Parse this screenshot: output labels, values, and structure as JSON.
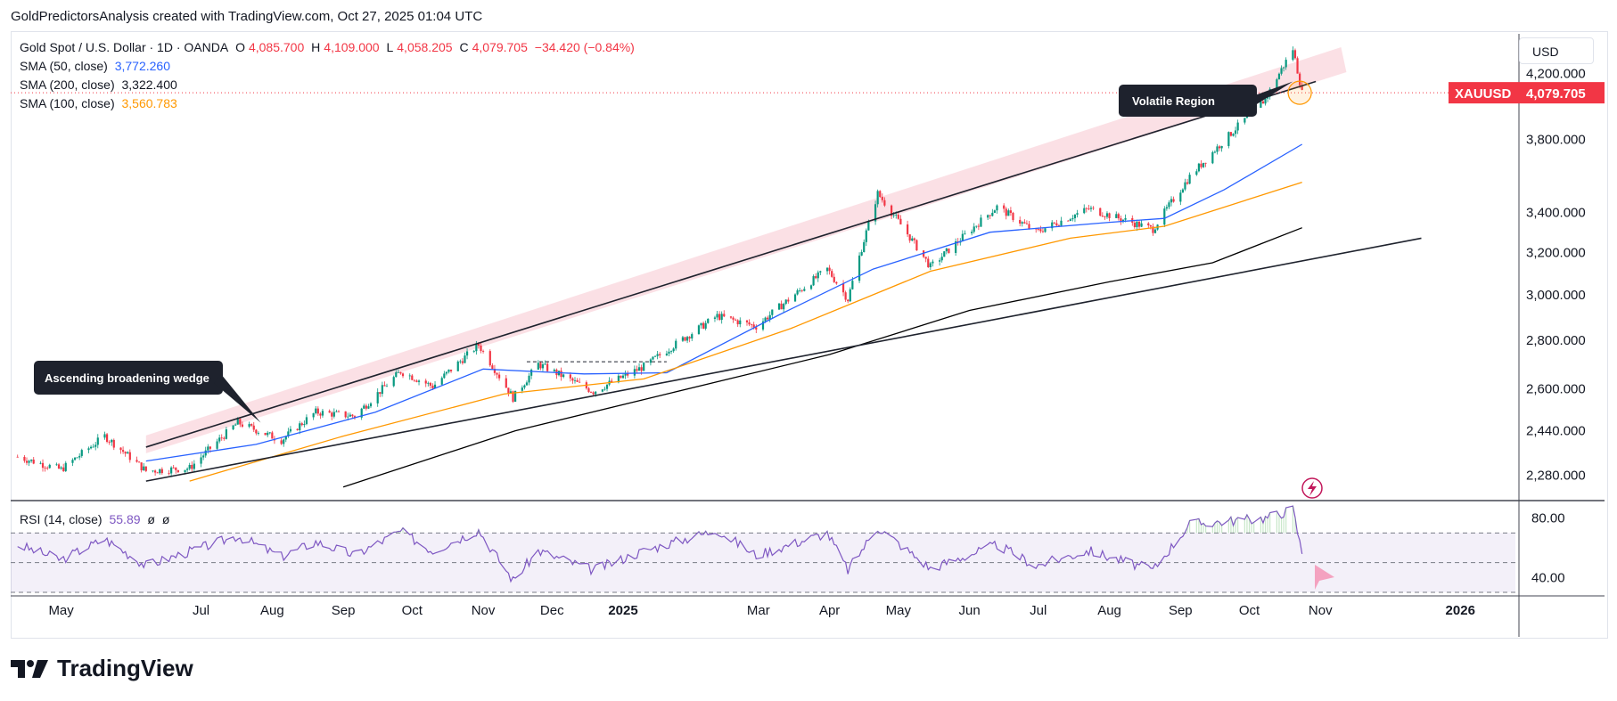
{
  "header": {
    "credit": "GoldPredictorsAnalysis created with TradingView.com, Oct 27, 2025 01:04 UTC"
  },
  "legend": {
    "symbol": "Gold Spot / U.S. Dollar · 1D · OANDA",
    "open_label": "O",
    "open": "4,085.700",
    "high_label": "H",
    "high": "4,109.000",
    "low_label": "L",
    "low": "4,058.205",
    "close_label": "C",
    "close": "4,079.705",
    "change": "−34.420 (−0.84%)",
    "sma50_label": "SMA (50, close)",
    "sma50_value": "3,772.260",
    "sma200_label": "SMA (200, close)",
    "sma200_value": "3,322.400",
    "sma100_label": "SMA (100, close)",
    "sma100_value": "3,560.783",
    "rsi_label": "RSI (14, close)",
    "rsi_value": "55.89",
    "rsi_extra1": "ø",
    "rsi_extra2": "ø"
  },
  "currency_button": "USD",
  "price_tag": {
    "symbol": "XAUUSD",
    "value": "4,079.705"
  },
  "annotations": {
    "volatile": "Volatile Region",
    "wedge": "Ascending broadening wedge"
  },
  "logo": {
    "text": "TradingView"
  },
  "colors": {
    "up": "#089981",
    "down": "#f23645",
    "sma50": "#2962ff",
    "sma100": "#ff9800",
    "sma200": "#000000",
    "rsi": "#7e57c2",
    "tag": "#f23645",
    "channel": "#f7c7d0"
  },
  "chart_data": [
    {
      "type": "candlestick",
      "title": "Gold Spot / U.S. Dollar · 1D · OANDA",
      "y_scale": "log",
      "ylim": [
        2200,
        4450
      ],
      "y_ticks": [
        2280,
        2440,
        2600,
        2800,
        3000,
        3200,
        3400,
        3800,
        4200
      ],
      "y_tick_labels": [
        "2,280.000",
        "2,440.000",
        "2,600.000",
        "2,800.000",
        "3,000.000",
        "3,200.000",
        "3,400.000",
        "3,800.000",
        "4,200.000"
      ],
      "x_tick_labels": [
        "May",
        "Jul",
        "Aug",
        "Sep",
        "Oct",
        "Nov",
        "Dec",
        "2025",
        "Mar",
        "Apr",
        "May",
        "Jun",
        "Jul",
        "Aug",
        "Sep",
        "Oct",
        "Nov",
        "2026"
      ],
      "x_tick_dates": [
        "2024-05-01",
        "2024-07-01",
        "2024-08-01",
        "2024-09-01",
        "2024-10-01",
        "2024-11-01",
        "2024-12-01",
        "2025-01-01",
        "2025-03-01",
        "2025-04-01",
        "2025-05-01",
        "2025-06-01",
        "2025-07-01",
        "2025-08-01",
        "2025-09-01",
        "2025-10-01",
        "2025-11-01",
        "2026-01-01"
      ],
      "price_path": [
        [
          "2024-04-12",
          2345
        ],
        [
          "2024-05-01",
          2300
        ],
        [
          "2024-05-20",
          2420
        ],
        [
          "2024-06-07",
          2295
        ],
        [
          "2024-06-26",
          2305
        ],
        [
          "2024-07-17",
          2470
        ],
        [
          "2024-08-05",
          2405
        ],
        [
          "2024-08-20",
          2510
        ],
        [
          "2024-09-06",
          2495
        ],
        [
          "2024-09-26",
          2670
        ],
        [
          "2024-10-10",
          2610
        ],
        [
          "2024-10-30",
          2780
        ],
        [
          "2024-11-14",
          2565
        ],
        [
          "2024-11-25",
          2700
        ],
        [
          "2024-12-19",
          2590
        ],
        [
          "2025-01-10",
          2690
        ],
        [
          "2025-02-11",
          2905
        ],
        [
          "2025-02-28",
          2860
        ],
        [
          "2025-03-31",
          3120
        ],
        [
          "2025-04-09",
          2980
        ],
        [
          "2025-04-22",
          3500
        ],
        [
          "2025-05-15",
          3130
        ],
        [
          "2025-06-13",
          3430
        ],
        [
          "2025-06-30",
          3300
        ],
        [
          "2025-07-23",
          3420
        ],
        [
          "2025-08-20",
          3315
        ],
        [
          "2025-09-05",
          3590
        ],
        [
          "2025-10-08",
          4040
        ],
        [
          "2025-10-20",
          4360
        ],
        [
          "2025-10-24",
          4079.705
        ]
      ],
      "series": [
        {
          "name": "SMA (50, close)",
          "points": [
            [
              "2024-06-07",
              2330
            ],
            [
              "2024-07-25",
              2390
            ],
            [
              "2024-09-15",
              2510
            ],
            [
              "2024-11-01",
              2680
            ],
            [
              "2024-12-15",
              2660
            ],
            [
              "2025-01-20",
              2665
            ],
            [
              "2025-03-10",
              2910
            ],
            [
              "2025-04-20",
              3120
            ],
            [
              "2025-06-10",
              3300
            ],
            [
              "2025-08-01",
              3350
            ],
            [
              "2025-08-25",
              3370
            ],
            [
              "2025-09-20",
              3520
            ],
            [
              "2025-10-24",
              3772.26
            ]
          ]
        },
        {
          "name": "SMA (100, close)",
          "points": [
            [
              "2024-06-26",
              2260
            ],
            [
              "2024-09-01",
              2420
            ],
            [
              "2024-11-10",
              2580
            ],
            [
              "2025-01-10",
              2640
            ],
            [
              "2025-03-15",
              2850
            ],
            [
              "2025-05-15",
              3110
            ],
            [
              "2025-07-15",
              3270
            ],
            [
              "2025-08-25",
              3330
            ],
            [
              "2025-10-24",
              3560.783
            ]
          ]
        },
        {
          "name": "SMA (200, close)",
          "points": [
            [
              "2024-09-01",
              2240
            ],
            [
              "2024-11-15",
              2440
            ],
            [
              "2025-01-20",
              2580
            ],
            [
              "2025-04-01",
              2740
            ],
            [
              "2025-06-01",
              2930
            ],
            [
              "2025-08-01",
              3060
            ],
            [
              "2025-09-15",
              3150
            ],
            [
              "2025-10-24",
              3322.4
            ]
          ]
        }
      ],
      "lines": [
        {
          "name": "wedge upper",
          "from": [
            "2024-06-07",
            2380
          ],
          "to": [
            "2025-10-30",
            4150
          ]
        },
        {
          "name": "wedge lower",
          "from": [
            "2024-06-07",
            2260
          ],
          "to": [
            "2025-12-15",
            3270
          ]
        },
        {
          "name": "channel band",
          "from": [
            "2024-06-07",
            2390
          ],
          "to": [
            "2025-11-10",
            4290
          ]
        },
        {
          "name": "box top",
          "from": [
            "2024-11-20",
            2710
          ],
          "to": [
            "2025-01-20",
            2710
          ]
        }
      ],
      "last_price": 4079.705,
      "last_change": -34.42
    },
    {
      "type": "line",
      "title": "RSI (14, close)",
      "ylim": [
        30,
        90
      ],
      "y_ticks": [
        40,
        80
      ],
      "y_tick_labels": [
        "40.00",
        "80.00"
      ],
      "bands": [
        30,
        50,
        70
      ],
      "points": [
        [
          "2024-04-12",
          62
        ],
        [
          "2024-05-01",
          52
        ],
        [
          "2024-05-20",
          66
        ],
        [
          "2024-06-07",
          48
        ],
        [
          "2024-07-17",
          68
        ],
        [
          "2024-08-05",
          54
        ],
        [
          "2024-08-20",
          64
        ],
        [
          "2024-09-06",
          55
        ],
        [
          "2024-09-26",
          71
        ],
        [
          "2024-10-10",
          58
        ],
        [
          "2024-10-30",
          72
        ],
        [
          "2024-11-14",
          38
        ],
        [
          "2024-11-25",
          58
        ],
        [
          "2024-12-19",
          45
        ],
        [
          "2025-01-10",
          58
        ],
        [
          "2025-02-11",
          72
        ],
        [
          "2025-02-28",
          55
        ],
        [
          "2025-03-31",
          70
        ],
        [
          "2025-04-09",
          45
        ],
        [
          "2025-04-22",
          74
        ],
        [
          "2025-05-15",
          46
        ],
        [
          "2025-06-13",
          62
        ],
        [
          "2025-06-30",
          48
        ],
        [
          "2025-07-23",
          58
        ],
        [
          "2025-08-20",
          45
        ],
        [
          "2025-09-05",
          76
        ],
        [
          "2025-10-08",
          80
        ],
        [
          "2025-10-20",
          86
        ],
        [
          "2025-10-24",
          55.89
        ]
      ]
    }
  ]
}
